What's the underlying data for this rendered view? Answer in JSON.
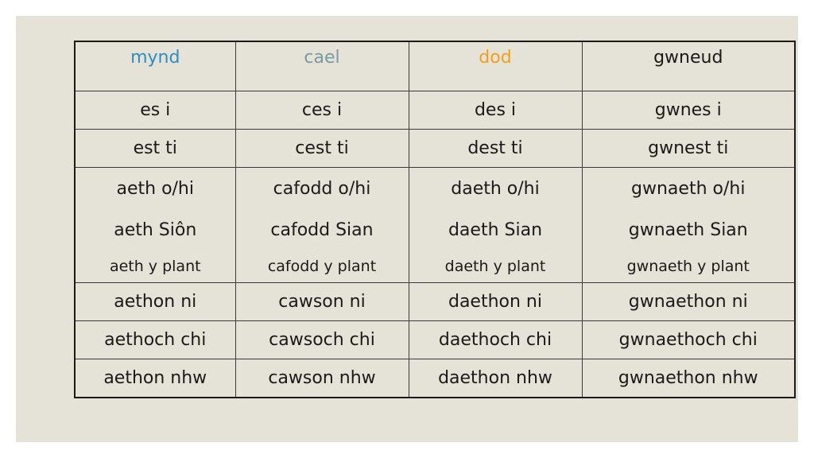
{
  "header": {
    "mynd": "mynd",
    "cael": "cael",
    "dod": "dod",
    "gwneud": "gwneud",
    "colors": {
      "mynd": "#2e8dbf",
      "cael": "#7a9aa2",
      "dod": "#f0a01e",
      "gwneud": "#1a1a1a"
    }
  },
  "rows": [
    [
      "es i",
      "ces i",
      "des i",
      "gwnes i"
    ],
    [
      "est ti",
      "cest ti",
      "dest ti",
      "gwnest ti"
    ]
  ],
  "third_person": [
    {
      "l1": "aeth o/hi",
      "l2": "aeth Siôn",
      "l3": "aeth y plant"
    },
    {
      "l1": "cafodd o/hi",
      "l2": "cafodd Sian",
      "l3": "cafodd y plant"
    },
    {
      "l1": "daeth o/hi",
      "l2": "daeth Sian",
      "l3": "daeth y plant"
    },
    {
      "l1": "gwnaeth o/hi",
      "l2": "gwnaeth Sian",
      "l3": "gwnaeth y plant"
    }
  ],
  "plural_rows": [
    [
      "aethon ni",
      "cawson ni",
      "daethon ni",
      "gwnaethon ni"
    ],
    [
      "aethoch chi",
      "cawsoch chi",
      "daethoch chi",
      "gwnaethoch chi"
    ],
    [
      "aethon nhw",
      "cawson nhw",
      "daethon nhw",
      "gwnaethon nhw"
    ]
  ]
}
